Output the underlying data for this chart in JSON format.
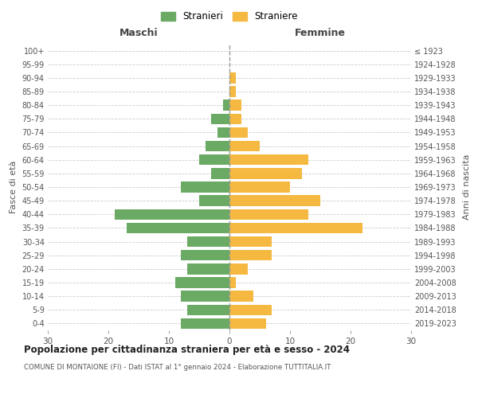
{
  "age_groups": [
    "0-4",
    "5-9",
    "10-14",
    "15-19",
    "20-24",
    "25-29",
    "30-34",
    "35-39",
    "40-44",
    "45-49",
    "50-54",
    "55-59",
    "60-64",
    "65-69",
    "70-74",
    "75-79",
    "80-84",
    "85-89",
    "90-94",
    "95-99",
    "100+"
  ],
  "birth_years": [
    "2019-2023",
    "2014-2018",
    "2009-2013",
    "2004-2008",
    "1999-2003",
    "1994-1998",
    "1989-1993",
    "1984-1988",
    "1979-1983",
    "1974-1978",
    "1969-1973",
    "1964-1968",
    "1959-1963",
    "1954-1958",
    "1949-1953",
    "1944-1948",
    "1939-1943",
    "1934-1938",
    "1929-1933",
    "1924-1928",
    "≤ 1923"
  ],
  "males": [
    8,
    7,
    8,
    9,
    7,
    8,
    7,
    17,
    19,
    5,
    8,
    3,
    5,
    4,
    2,
    3,
    1,
    0,
    0,
    0,
    0
  ],
  "females": [
    6,
    7,
    4,
    1,
    3,
    7,
    7,
    22,
    13,
    15,
    10,
    12,
    13,
    5,
    3,
    2,
    2,
    1,
    1,
    0,
    0
  ],
  "male_color": "#6aaa64",
  "female_color": "#f5b942",
  "grid_color": "#cccccc",
  "dashed_line_color": "#999999",
  "title": "Popolazione per cittadinanza straniera per età e sesso - 2024",
  "subtitle": "COMUNE DI MONTAIONE (FI) - Dati ISTAT al 1° gennaio 2024 - Elaborazione TUTTITALIA.IT",
  "label_maschi": "Maschi",
  "label_femmine": "Femmine",
  "ylabel_left": "Fasce di età",
  "ylabel_right": "Anni di nascita",
  "legend_male": "Stranieri",
  "legend_female": "Straniere",
  "xlim": 30,
  "bar_height": 0.78
}
